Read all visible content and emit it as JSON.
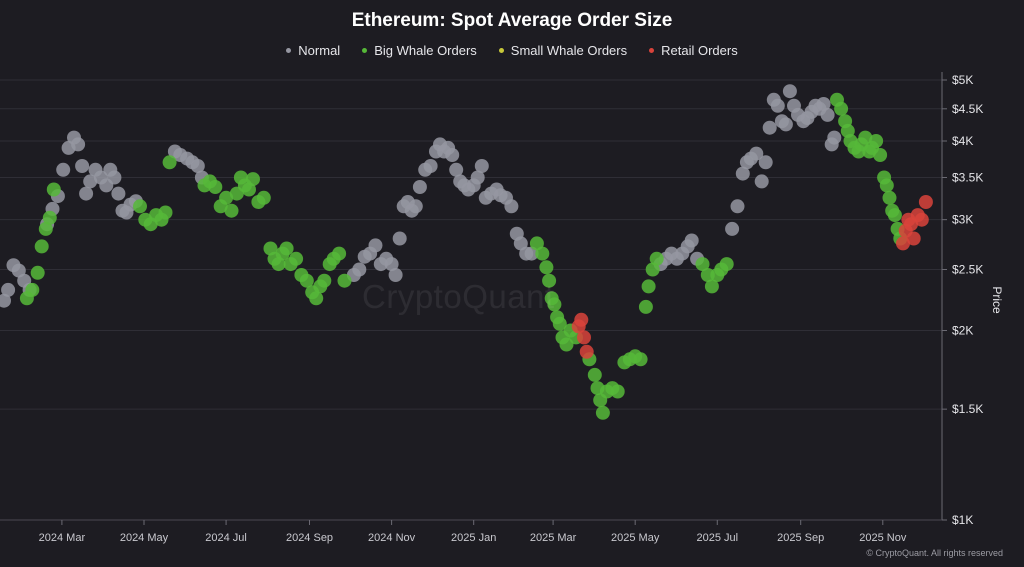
{
  "chart_data": {
    "type": "scatter",
    "title": "Ethereum: Spot Average Order Size",
    "ylabel": "Price",
    "yscale": "log",
    "ylim": [
      1000,
      5000
    ],
    "yticks": [
      {
        "value": 5000,
        "label": "$5K"
      },
      {
        "value": 4500,
        "label": "$4.5K"
      },
      {
        "value": 4000,
        "label": "$4K"
      },
      {
        "value": 3500,
        "label": "$3.5K"
      },
      {
        "value": 3000,
        "label": "$3K"
      },
      {
        "value": 2500,
        "label": "$2.5K"
      },
      {
        "value": 2000,
        "label": "$2K"
      },
      {
        "value": 1500,
        "label": "$1.5K"
      },
      {
        "value": 1000,
        "label": "$1K"
      }
    ],
    "xlim": [
      "2024-01-15",
      "2025-12-15"
    ],
    "xticks": [
      {
        "date": "2024-03-01",
        "label": "2024 Mar"
      },
      {
        "date": "2024-05-01",
        "label": "2024 May"
      },
      {
        "date": "2024-07-01",
        "label": "2024 Jul"
      },
      {
        "date": "2024-09-01",
        "label": "2024 Sep"
      },
      {
        "date": "2024-11-01",
        "label": "2024 Nov"
      },
      {
        "date": "2025-01-01",
        "label": "2025 Jan"
      },
      {
        "date": "2025-03-01",
        "label": "2025 Mar"
      },
      {
        "date": "2025-05-01",
        "label": "2025 May"
      },
      {
        "date": "2025-07-01",
        "label": "2025 Jul"
      },
      {
        "date": "2025-09-01",
        "label": "2025 Sep"
      },
      {
        "date": "2025-11-01",
        "label": "2025 Nov"
      }
    ],
    "legend": [
      {
        "key": "normal",
        "label": "Normal",
        "color": "#9596a1"
      },
      {
        "key": "big",
        "label": "Big Whale Orders",
        "color": "#56b838"
      },
      {
        "key": "small",
        "label": "Small Whale Orders",
        "color": "#c8c83a"
      },
      {
        "key": "retail",
        "label": "Retail Orders",
        "color": "#d9433b"
      }
    ],
    "legend_position": "top-center",
    "grid": true,
    "series": [
      {
        "name": "Normal",
        "key": "normal",
        "points": [
          [
            "2024-01-18",
            2230
          ],
          [
            "2024-01-21",
            2320
          ],
          [
            "2024-01-25",
            2540
          ],
          [
            "2024-01-29",
            2490
          ],
          [
            "2024-02-02",
            2400
          ],
          [
            "2024-02-06",
            2320
          ],
          [
            "2024-02-19",
            2950
          ],
          [
            "2024-02-23",
            3120
          ],
          [
            "2024-02-27",
            3270
          ],
          [
            "2024-03-02",
            3600
          ],
          [
            "2024-03-06",
            3900
          ],
          [
            "2024-03-10",
            4050
          ],
          [
            "2024-03-13",
            3950
          ],
          [
            "2024-03-16",
            3650
          ],
          [
            "2024-03-19",
            3300
          ],
          [
            "2024-03-22",
            3450
          ],
          [
            "2024-03-26",
            3600
          ],
          [
            "2024-03-30",
            3500
          ],
          [
            "2024-04-03",
            3400
          ],
          [
            "2024-04-06",
            3600
          ],
          [
            "2024-04-09",
            3500
          ],
          [
            "2024-04-12",
            3300
          ],
          [
            "2024-04-15",
            3100
          ],
          [
            "2024-04-18",
            3080
          ],
          [
            "2024-04-21",
            3170
          ],
          [
            "2024-04-25",
            3210
          ],
          [
            "2024-05-24",
            3850
          ],
          [
            "2024-05-28",
            3800
          ],
          [
            "2024-06-02",
            3750
          ],
          [
            "2024-06-06",
            3700
          ],
          [
            "2024-06-10",
            3650
          ],
          [
            "2024-06-13",
            3500
          ],
          [
            "2024-10-04",
            2450
          ],
          [
            "2024-10-08",
            2500
          ],
          [
            "2024-10-12",
            2620
          ],
          [
            "2024-10-16",
            2650
          ],
          [
            "2024-10-20",
            2730
          ],
          [
            "2024-10-24",
            2550
          ],
          [
            "2024-10-28",
            2600
          ],
          [
            "2024-11-01",
            2550
          ],
          [
            "2024-11-04",
            2450
          ],
          [
            "2024-11-07",
            2800
          ],
          [
            "2024-11-10",
            3150
          ],
          [
            "2024-11-13",
            3200
          ],
          [
            "2024-11-16",
            3100
          ],
          [
            "2024-11-19",
            3150
          ],
          [
            "2024-11-22",
            3380
          ],
          [
            "2024-11-26",
            3600
          ],
          [
            "2024-11-30",
            3650
          ],
          [
            "2024-12-04",
            3850
          ],
          [
            "2024-12-07",
            3950
          ],
          [
            "2024-12-10",
            3850
          ],
          [
            "2024-12-13",
            3900
          ],
          [
            "2024-12-16",
            3800
          ],
          [
            "2024-12-19",
            3600
          ],
          [
            "2024-12-22",
            3450
          ],
          [
            "2024-12-25",
            3400
          ],
          [
            "2024-12-28",
            3350
          ],
          [
            "2025-01-01",
            3400
          ],
          [
            "2025-01-04",
            3500
          ],
          [
            "2025-01-07",
            3650
          ],
          [
            "2025-01-10",
            3250
          ],
          [
            "2025-01-14",
            3300
          ],
          [
            "2025-01-18",
            3350
          ],
          [
            "2025-01-21",
            3280
          ],
          [
            "2025-01-25",
            3250
          ],
          [
            "2025-01-29",
            3150
          ],
          [
            "2025-02-02",
            2850
          ],
          [
            "2025-02-05",
            2750
          ],
          [
            "2025-02-09",
            2650
          ],
          [
            "2025-02-13",
            2650
          ],
          [
            "2025-05-20",
            2550
          ],
          [
            "2025-05-24",
            2600
          ],
          [
            "2025-05-28",
            2650
          ],
          [
            "2025-06-01",
            2600
          ],
          [
            "2025-06-05",
            2650
          ],
          [
            "2025-06-09",
            2720
          ],
          [
            "2025-06-12",
            2780
          ],
          [
            "2025-06-16",
            2600
          ],
          [
            "2025-07-12",
            2900
          ],
          [
            "2025-07-16",
            3150
          ],
          [
            "2025-07-20",
            3550
          ],
          [
            "2025-07-23",
            3700
          ],
          [
            "2025-07-26",
            3750
          ],
          [
            "2025-07-30",
            3820
          ],
          [
            "2025-08-03",
            3450
          ],
          [
            "2025-08-06",
            3700
          ],
          [
            "2025-08-09",
            4200
          ],
          [
            "2025-08-12",
            4650
          ],
          [
            "2025-08-15",
            4550
          ],
          [
            "2025-08-18",
            4300
          ],
          [
            "2025-08-21",
            4250
          ],
          [
            "2025-08-24",
            4800
          ],
          [
            "2025-08-27",
            4550
          ],
          [
            "2025-08-30",
            4400
          ],
          [
            "2025-09-03",
            4300
          ],
          [
            "2025-09-06",
            4350
          ],
          [
            "2025-09-09",
            4450
          ],
          [
            "2025-09-12",
            4550
          ],
          [
            "2025-09-15",
            4500
          ],
          [
            "2025-09-18",
            4580
          ],
          [
            "2025-09-21",
            4400
          ],
          [
            "2025-09-24",
            3950
          ],
          [
            "2025-09-26",
            4050
          ]
        ]
      },
      {
        "name": "Big Whale Orders",
        "key": "big",
        "points": [
          [
            "2024-02-04",
            2250
          ],
          [
            "2024-02-08",
            2320
          ],
          [
            "2024-02-12",
            2470
          ],
          [
            "2024-02-15",
            2720
          ],
          [
            "2024-02-18",
            2900
          ],
          [
            "2024-02-21",
            3020
          ],
          [
            "2024-02-24",
            3350
          ],
          [
            "2024-04-28",
            3150
          ],
          [
            "2024-05-02",
            3000
          ],
          [
            "2024-05-06",
            2950
          ],
          [
            "2024-05-10",
            3050
          ],
          [
            "2024-05-14",
            3000
          ],
          [
            "2024-05-17",
            3080
          ],
          [
            "2024-05-20",
            3700
          ],
          [
            "2024-06-15",
            3400
          ],
          [
            "2024-06-19",
            3450
          ],
          [
            "2024-06-23",
            3380
          ],
          [
            "2024-06-27",
            3150
          ],
          [
            "2024-07-01",
            3250
          ],
          [
            "2024-07-05",
            3100
          ],
          [
            "2024-07-09",
            3300
          ],
          [
            "2024-07-12",
            3500
          ],
          [
            "2024-07-15",
            3400
          ],
          [
            "2024-07-18",
            3350
          ],
          [
            "2024-07-21",
            3480
          ],
          [
            "2024-07-25",
            3200
          ],
          [
            "2024-07-29",
            3250
          ],
          [
            "2024-08-03",
            2700
          ],
          [
            "2024-08-06",
            2600
          ],
          [
            "2024-08-09",
            2550
          ],
          [
            "2024-08-12",
            2650
          ],
          [
            "2024-08-15",
            2700
          ],
          [
            "2024-08-18",
            2550
          ],
          [
            "2024-08-22",
            2600
          ],
          [
            "2024-08-26",
            2450
          ],
          [
            "2024-08-30",
            2400
          ],
          [
            "2024-09-03",
            2300
          ],
          [
            "2024-09-06",
            2250
          ],
          [
            "2024-09-09",
            2350
          ],
          [
            "2024-09-12",
            2400
          ],
          [
            "2024-09-16",
            2550
          ],
          [
            "2024-09-19",
            2600
          ],
          [
            "2024-09-23",
            2650
          ],
          [
            "2024-09-27",
            2400
          ],
          [
            "2025-02-17",
            2750
          ],
          [
            "2025-02-21",
            2650
          ],
          [
            "2025-02-24",
            2520
          ],
          [
            "2025-02-26",
            2400
          ],
          [
            "2025-02-28",
            2250
          ],
          [
            "2025-03-02",
            2200
          ],
          [
            "2025-03-04",
            2100
          ],
          [
            "2025-03-06",
            2050
          ],
          [
            "2025-03-08",
            1950
          ],
          [
            "2025-03-11",
            1900
          ],
          [
            "2025-03-14",
            2000
          ],
          [
            "2025-03-18",
            1950
          ],
          [
            "2025-03-28",
            1800
          ],
          [
            "2025-04-01",
            1700
          ],
          [
            "2025-04-03",
            1620
          ],
          [
            "2025-04-05",
            1550
          ],
          [
            "2025-04-07",
            1480
          ],
          [
            "2025-04-10",
            1600
          ],
          [
            "2025-04-14",
            1620
          ],
          [
            "2025-04-18",
            1600
          ],
          [
            "2025-04-23",
            1780
          ],
          [
            "2025-04-27",
            1800
          ],
          [
            "2025-05-01",
            1820
          ],
          [
            "2025-05-05",
            1800
          ],
          [
            "2025-05-09",
            2180
          ],
          [
            "2025-05-11",
            2350
          ],
          [
            "2025-05-14",
            2500
          ],
          [
            "2025-05-17",
            2600
          ],
          [
            "2025-06-20",
            2550
          ],
          [
            "2025-06-24",
            2450
          ],
          [
            "2025-06-27",
            2350
          ],
          [
            "2025-07-01",
            2450
          ],
          [
            "2025-07-04",
            2500
          ],
          [
            "2025-07-08",
            2550
          ],
          [
            "2025-09-28",
            4650
          ],
          [
            "2025-10-01",
            4500
          ],
          [
            "2025-10-04",
            4300
          ],
          [
            "2025-10-06",
            4150
          ],
          [
            "2025-10-08",
            4000
          ],
          [
            "2025-10-11",
            3900
          ],
          [
            "2025-10-14",
            3850
          ],
          [
            "2025-10-16",
            3950
          ],
          [
            "2025-10-19",
            4050
          ],
          [
            "2025-10-22",
            3850
          ],
          [
            "2025-10-24",
            3900
          ],
          [
            "2025-10-27",
            4000
          ],
          [
            "2025-10-30",
            3800
          ],
          [
            "2025-11-02",
            3500
          ],
          [
            "2025-11-04",
            3400
          ],
          [
            "2025-11-06",
            3250
          ],
          [
            "2025-11-08",
            3100
          ],
          [
            "2025-11-10",
            3050
          ],
          [
            "2025-11-12",
            2900
          ],
          [
            "2025-11-14",
            2800
          ]
        ]
      },
      {
        "name": "Retail Orders",
        "key": "retail",
        "points": [
          [
            "2025-03-20",
            2030
          ],
          [
            "2025-03-22",
            2080
          ],
          [
            "2025-03-24",
            1950
          ],
          [
            "2025-03-26",
            1850
          ],
          [
            "2025-11-16",
            2750
          ],
          [
            "2025-11-18",
            2880
          ],
          [
            "2025-11-20",
            3000
          ],
          [
            "2025-11-22",
            2950
          ],
          [
            "2025-11-24",
            2800
          ],
          [
            "2025-11-27",
            3050
          ],
          [
            "2025-11-30",
            3000
          ],
          [
            "2025-12-03",
            3200
          ]
        ]
      }
    ]
  },
  "watermark": "CryptoQuant",
  "copyright": "© CryptoQuant. All rights reserved"
}
